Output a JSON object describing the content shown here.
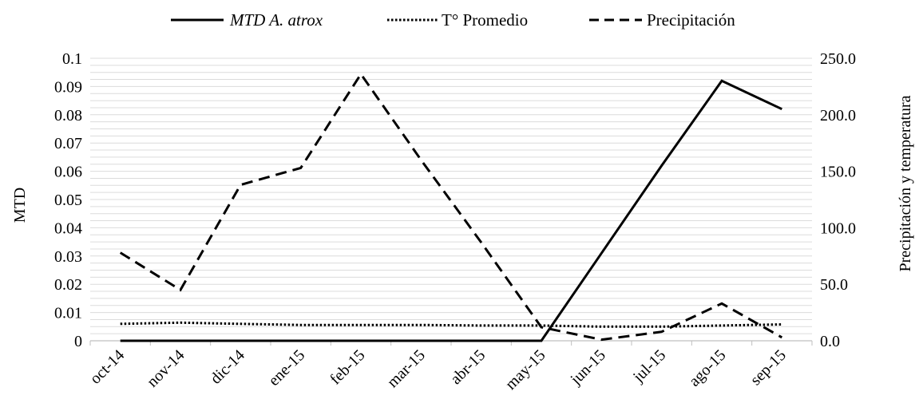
{
  "chart_data": {
    "type": "line",
    "categories": [
      "oct-14",
      "nov-14",
      "dic-14",
      "ene-15",
      "feb-15",
      "mar-15",
      "abr-15",
      "may-15",
      "jun-15",
      "jul-15",
      "ago-15",
      "sep-15"
    ],
    "series": [
      {
        "name": "MTD A. atrox",
        "axis": "left",
        "style": "solid",
        "color": "#000000",
        "values": [
          0,
          0,
          0,
          0,
          0,
          0,
          0,
          0,
          0.031,
          0.062,
          0.092,
          0.082
        ]
      },
      {
        "name": "T° Promedio",
        "axis": "right",
        "style": "dotted",
        "color": "#000000",
        "values": [
          15.0,
          16.0,
          15.0,
          14.0,
          14.0,
          14.0,
          13.5,
          13.5,
          12.5,
          12.5,
          13.5,
          14.5
        ]
      },
      {
        "name": "Precipitación",
        "axis": "right",
        "style": "dashed",
        "color": "#000000",
        "values": [
          78.0,
          45.0,
          138.0,
          153.0,
          236.0,
          160.0,
          87.0,
          12.0,
          1.0,
          8.0,
          33.0,
          3.0
        ]
      }
    ],
    "ylabel": "MTD",
    "y2label": "Precipitación y temperatura",
    "ylim": [
      0,
      0.1
    ],
    "y2lim": [
      0,
      250
    ],
    "yticks": [
      "0",
      "0.01",
      "0.02",
      "0.03",
      "0.04",
      "0.05",
      "0.06",
      "0.07",
      "0.08",
      "0.09",
      "0.1"
    ],
    "y2ticks": [
      "0.0",
      "50.0",
      "100.0",
      "150.0",
      "200.0",
      "250.0"
    ],
    "grid": true,
    "legend_position": "top"
  }
}
